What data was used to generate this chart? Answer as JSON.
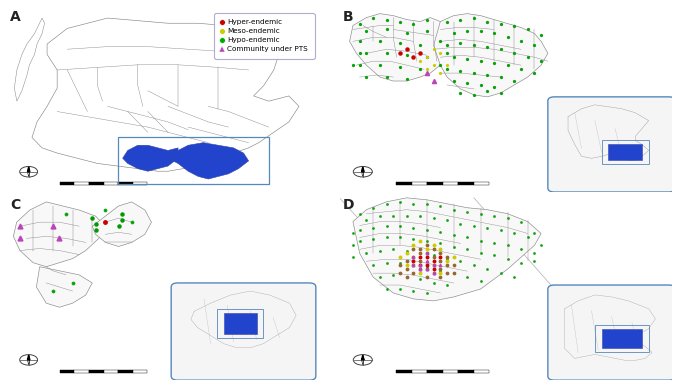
{
  "fig_width": 6.79,
  "fig_height": 3.84,
  "background_color": "#ffffff",
  "panel_labels": [
    "A",
    "B",
    "C",
    "D"
  ],
  "legend_items": [
    {
      "label": "Hyper-endemic",
      "color": "#cc0000",
      "marker": "o"
    },
    {
      "label": "Meso-endemic",
      "color": "#cccc00",
      "marker": "o"
    },
    {
      "label": "Hypo-endemic",
      "color": "#00aa00",
      "marker": "o"
    },
    {
      "label": "Community under PTS",
      "color": "#bb44bb",
      "marker": "^"
    }
  ],
  "map_line_color": "#888888",
  "mexico_fill": "#ffffff",
  "endemic_fill": "#2244cc",
  "border_box_color": "#5588bb",
  "compass_color": "#444444"
}
